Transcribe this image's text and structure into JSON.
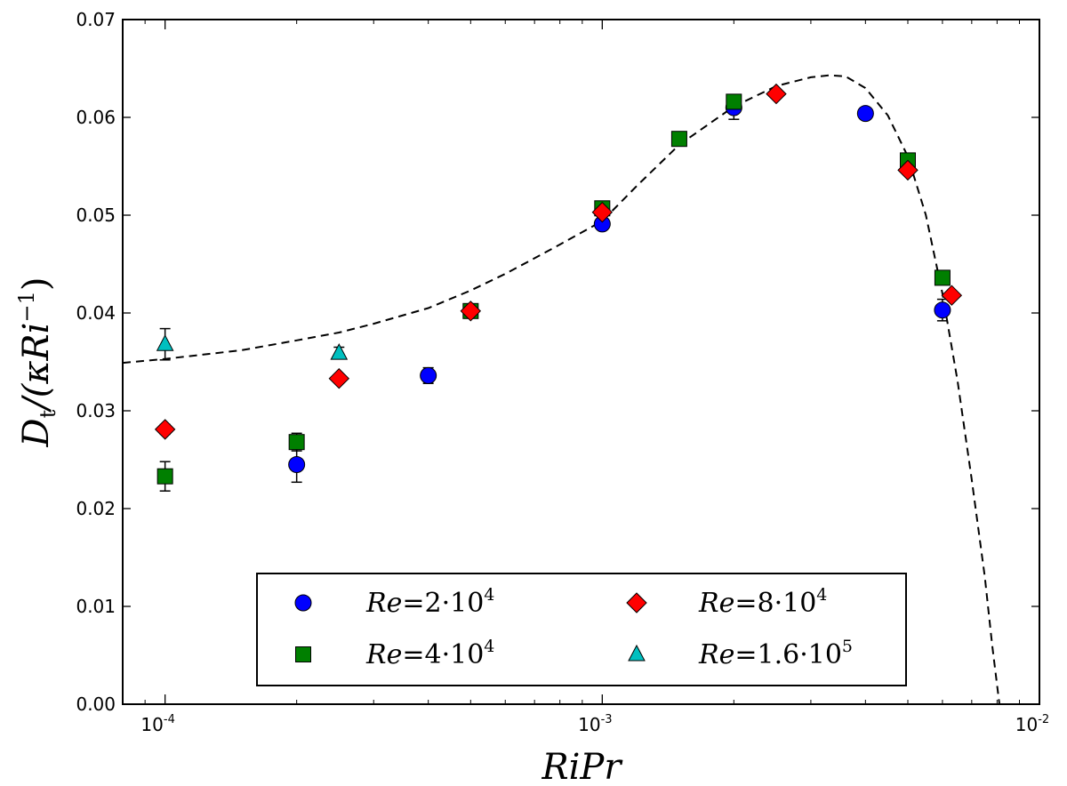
{
  "chart_data": {
    "type": "scatter",
    "title": "",
    "xlabel": "RiPr",
    "ylabel_parts": {
      "main": "D",
      "sub": "t",
      "rest": "/(κRi",
      "sup": "−1",
      "close": ")"
    },
    "xscale": "log",
    "xlim": [
      8e-05,
      0.01
    ],
    "ylim": [
      0.0,
      0.07
    ],
    "yticks": [
      0.0,
      0.01,
      0.02,
      0.03,
      0.04,
      0.05,
      0.06,
      0.07
    ],
    "ytick_labels": [
      "0.00",
      "0.01",
      "0.02",
      "0.03",
      "0.04",
      "0.05",
      "0.06",
      "0.07"
    ],
    "xticks": [
      {
        "value": 0.0001,
        "base": "10",
        "exp": "-4"
      },
      {
        "value": 0.001,
        "base": "10",
        "exp": "-3"
      },
      {
        "value": 0.01,
        "base": "10",
        "exp": "-2"
      }
    ],
    "legend_position": "lower-center",
    "series": [
      {
        "name": "Re = 2·10^4",
        "label_prefix": "Re",
        "label_eq": "=",
        "label_value": "2·10",
        "label_exp": "4",
        "marker": "circle",
        "color": "#0000ff",
        "points": [
          {
            "x": 0.0002,
            "y": 0.0245,
            "err": 0.0018
          },
          {
            "x": 0.0004,
            "y": 0.0336,
            "err": 0.0008
          },
          {
            "x": 0.001,
            "y": 0.0491,
            "err": 0.0005
          },
          {
            "x": 0.002,
            "y": 0.061,
            "err": 0.0012
          },
          {
            "x": 0.004,
            "y": 0.0604,
            "err": 0.0003
          },
          {
            "x": 0.006,
            "y": 0.0403,
            "err": 0.0011
          }
        ]
      },
      {
        "name": "Re = 4·10^4",
        "label_prefix": "Re",
        "label_eq": "=",
        "label_value": "4·10",
        "label_exp": "4",
        "marker": "square",
        "color": "#007f00",
        "points": [
          {
            "x": 0.0001,
            "y": 0.0233,
            "err": 0.0015
          },
          {
            "x": 0.0002,
            "y": 0.0268,
            "err": 0.0009
          },
          {
            "x": 0.0005,
            "y": 0.0402,
            "err": 0.0004
          },
          {
            "x": 0.001,
            "y": 0.0507,
            "err": 0.0004
          },
          {
            "x": 0.0015,
            "y": 0.0578,
            "err": 0.0003
          },
          {
            "x": 0.002,
            "y": 0.0616,
            "err": 0.0005
          },
          {
            "x": 0.005,
            "y": 0.0556,
            "err": 0.0004
          },
          {
            "x": 0.006,
            "y": 0.0436,
            "err": 0.0005
          }
        ]
      },
      {
        "name": "Re = 8·10^4",
        "label_prefix": "Re",
        "label_eq": "=",
        "label_value": "8·10",
        "label_exp": "4",
        "marker": "diamond",
        "color": "#ff0000",
        "points": [
          {
            "x": 0.0001,
            "y": 0.0281,
            "err": 0.0005
          },
          {
            "x": 0.00025,
            "y": 0.0333,
            "err": 0.0004
          },
          {
            "x": 0.0005,
            "y": 0.0402,
            "err": 0.0004
          },
          {
            "x": 0.001,
            "y": 0.0503,
            "err": 0.0004
          },
          {
            "x": 0.0025,
            "y": 0.0624,
            "err": 0.0003
          },
          {
            "x": 0.005,
            "y": 0.0546,
            "err": 0.0004
          },
          {
            "x": 0.0063,
            "y": 0.0418,
            "err": 0.0004
          }
        ]
      },
      {
        "name": "Re = 1.6·10^5",
        "label_prefix": "Re",
        "label_eq": "=",
        "label_value": "1.6·10",
        "label_exp": "5",
        "marker": "triangle",
        "color": "#00bfbf",
        "points": [
          {
            "x": 0.0001,
            "y": 0.0368,
            "err": 0.0016
          },
          {
            "x": 0.00025,
            "y": 0.0359,
            "err": 0.0006
          }
        ]
      }
    ],
    "model_curve": {
      "style": "dashed",
      "color": "#000000",
      "points": [
        [
          8e-05,
          0.0349
        ],
        [
          0.0001,
          0.0353
        ],
        [
          0.00015,
          0.0362
        ],
        [
          0.0002,
          0.0372
        ],
        [
          0.00025,
          0.038
        ],
        [
          0.0003,
          0.0389
        ],
        [
          0.0004,
          0.0405
        ],
        [
          0.0005,
          0.0423
        ],
        [
          0.0006,
          0.044
        ],
        [
          0.0007,
          0.0456
        ],
        [
          0.0008,
          0.047
        ],
        [
          0.001,
          0.0494
        ],
        [
          0.0012,
          0.053
        ],
        [
          0.0015,
          0.0572
        ],
        [
          0.002,
          0.0611
        ],
        [
          0.0025,
          0.0632
        ],
        [
          0.003,
          0.0641
        ],
        [
          0.0033,
          0.0643
        ],
        [
          0.0036,
          0.0642
        ],
        [
          0.004,
          0.063
        ],
        [
          0.0045,
          0.0602
        ],
        [
          0.005,
          0.056
        ],
        [
          0.0055,
          0.05
        ],
        [
          0.006,
          0.042
        ],
        [
          0.0065,
          0.033
        ],
        [
          0.007,
          0.023
        ],
        [
          0.0075,
          0.013
        ],
        [
          0.0078,
          0.006
        ],
        [
          0.0081,
          0.0
        ]
      ]
    }
  }
}
